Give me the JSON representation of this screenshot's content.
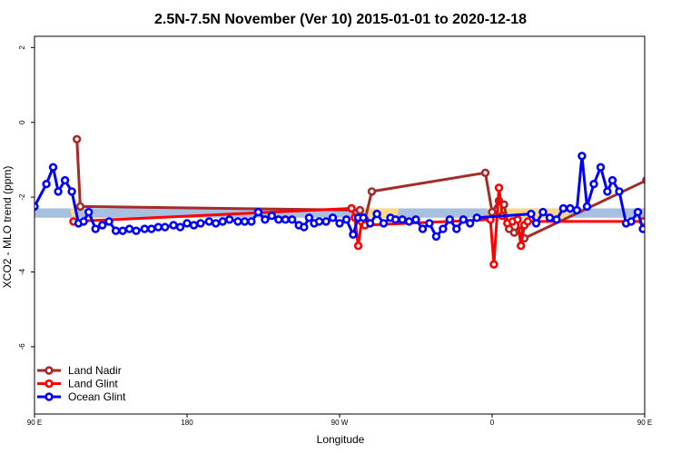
{
  "chart_data": {
    "type": "line",
    "title": "2.5N-7.5N November (Ver 10)   2015-01-01 to 2020-12-18",
    "xlabel": "Longitude",
    "ylabel": "XCO2 - MLO trend (ppm)",
    "xlim": [
      90,
      450
    ],
    "ylim": [
      -7.8,
      2.3
    ],
    "x_ticks": [
      {
        "value": 90,
        "label": "90 E"
      },
      {
        "value": 180,
        "label": "180"
      },
      {
        "value": 270,
        "label": "90 W"
      },
      {
        "value": 360,
        "label": "0"
      },
      {
        "value": 450,
        "label": "90 E"
      },
      {
        "value": 540,
        "label": "180"
      }
    ],
    "y_ticks": [
      {
        "value": 2,
        "label": "2"
      },
      {
        "value": 0,
        "label": "0"
      },
      {
        "value": -2,
        "label": "-2"
      },
      {
        "value": -4,
        "label": "-4"
      },
      {
        "value": -6,
        "label": "-6"
      }
    ],
    "reference_band": {
      "y_min": -2.55,
      "y_max": -2.3,
      "color": "#a8c0e0"
    },
    "land_regions": [
      {
        "x_from": 111,
        "x_to": 116
      },
      {
        "x_from": 284,
        "x_to": 305
      },
      {
        "x_from": 357,
        "x_to": 406
      },
      {
        "x_from": 461,
        "x_to": 466
      },
      {
        "x_from": 471,
        "x_to": 476
      }
    ],
    "land_region_color": "#fad88a",
    "legend_position": "bottom-left",
    "series": [
      {
        "name": "Land Nadir",
        "color": "#a52a2a",
        "points": [
          [
            115,
            -0.45
          ],
          [
            117,
            -2.25
          ],
          [
            282,
            -2.35
          ],
          [
            285,
            -2.6
          ],
          [
            289,
            -1.85
          ],
          [
            356,
            -1.35
          ],
          [
            360,
            -2.4
          ],
          [
            364,
            -2.1
          ],
          [
            367,
            -2.2
          ],
          [
            370,
            -2.85
          ],
          [
            373,
            -2.95
          ],
          [
            376,
            -2.9
          ],
          [
            379,
            -3.1
          ],
          [
            451,
            -1.55
          ],
          [
            453,
            -0.45
          ],
          [
            456,
            -2.3
          ]
        ]
      },
      {
        "name": "Land Glint",
        "color": "#ff0000",
        "points": [
          [
            113,
            -2.65
          ],
          [
            277,
            -2.3
          ],
          [
            279,
            -2.55
          ],
          [
            281,
            -3.3
          ],
          [
            283,
            -2.65
          ],
          [
            285,
            -2.75
          ],
          [
            359,
            -2.6
          ],
          [
            361,
            -3.8
          ],
          [
            364,
            -1.75
          ],
          [
            366,
            -2.5
          ],
          [
            369,
            -2.7
          ],
          [
            372,
            -2.65
          ],
          [
            375,
            -2.6
          ],
          [
            377,
            -3.3
          ],
          [
            379,
            -2.75
          ],
          [
            381,
            -2.65
          ],
          [
            449,
            -2.65
          ],
          [
            453,
            -2.7
          ]
        ]
      },
      {
        "name": "Ocean Glint",
        "color": "#0000ff",
        "points": [
          [
            90,
            -2.25
          ],
          [
            97,
            -1.65
          ],
          [
            101,
            -1.2
          ],
          [
            104,
            -1.85
          ],
          [
            108,
            -1.55
          ],
          [
            112,
            -1.85
          ],
          [
            116,
            -2.7
          ],
          [
            119,
            -2.65
          ],
          [
            122,
            -2.4
          ],
          [
            126,
            -2.85
          ],
          [
            130,
            -2.75
          ],
          [
            134,
            -2.65
          ],
          [
            138,
            -2.9
          ],
          [
            142,
            -2.9
          ],
          [
            146,
            -2.85
          ],
          [
            150,
            -2.9
          ],
          [
            155,
            -2.85
          ],
          [
            159,
            -2.85
          ],
          [
            163,
            -2.8
          ],
          [
            167,
            -2.8
          ],
          [
            172,
            -2.75
          ],
          [
            176,
            -2.8
          ],
          [
            180,
            -2.7
          ],
          [
            184,
            -2.75
          ],
          [
            188,
            -2.7
          ],
          [
            193,
            -2.65
          ],
          [
            197,
            -2.7
          ],
          [
            201,
            -2.65
          ],
          [
            205,
            -2.6
          ],
          [
            210,
            -2.65
          ],
          [
            214,
            -2.65
          ],
          [
            218,
            -2.65
          ],
          [
            222,
            -2.4
          ],
          [
            226,
            -2.6
          ],
          [
            230,
            -2.5
          ],
          [
            234,
            -2.6
          ],
          [
            238,
            -2.6
          ],
          [
            242,
            -2.6
          ],
          [
            246,
            -2.75
          ],
          [
            249,
            -2.8
          ],
          [
            252,
            -2.55
          ],
          [
            255,
            -2.7
          ],
          [
            258,
            -2.65
          ],
          [
            262,
            -2.65
          ],
          [
            266,
            -2.55
          ],
          [
            270,
            -2.7
          ],
          [
            274,
            -2.6
          ],
          [
            278,
            -3.0
          ],
          [
            281,
            -2.55
          ],
          [
            284,
            -2.55
          ],
          [
            288,
            -2.7
          ],
          [
            292,
            -2.45
          ],
          [
            296,
            -2.7
          ],
          [
            300,
            -2.55
          ],
          [
            303,
            -2.6
          ],
          [
            307,
            -2.6
          ],
          [
            311,
            -2.65
          ],
          [
            315,
            -2.6
          ],
          [
            319,
            -2.85
          ],
          [
            323,
            -2.7
          ],
          [
            327,
            -3.05
          ],
          [
            331,
            -2.85
          ],
          [
            335,
            -2.6
          ],
          [
            339,
            -2.85
          ],
          [
            343,
            -2.6
          ],
          [
            347,
            -2.7
          ],
          [
            351,
            -2.55
          ],
          [
            383,
            -2.45
          ],
          [
            386,
            -2.7
          ],
          [
            390,
            -2.4
          ],
          [
            394,
            -2.55
          ],
          [
            398,
            -2.6
          ],
          [
            402,
            -2.3
          ],
          [
            406,
            -2.3
          ],
          [
            410,
            -2.35
          ],
          [
            413,
            -0.9
          ],
          [
            416,
            -2.25
          ],
          [
            420,
            -1.65
          ],
          [
            424,
            -1.2
          ],
          [
            428,
            -1.85
          ],
          [
            431,
            -1.55
          ],
          [
            435,
            -1.85
          ],
          [
            439,
            -2.7
          ],
          [
            442,
            -2.65
          ],
          [
            446,
            -2.4
          ],
          [
            449,
            -2.85
          ],
          [
            453,
            -2.75
          ],
          [
            457,
            -2.65
          ],
          [
            460,
            -2.9
          ],
          [
            464,
            -2.9
          ],
          [
            468,
            -2.85
          ],
          [
            472,
            -2.9
          ],
          [
            476,
            -2.85
          ],
          [
            480,
            -2.85
          ],
          [
            484,
            -2.8
          ],
          [
            488,
            -2.8
          ]
        ]
      }
    ]
  }
}
